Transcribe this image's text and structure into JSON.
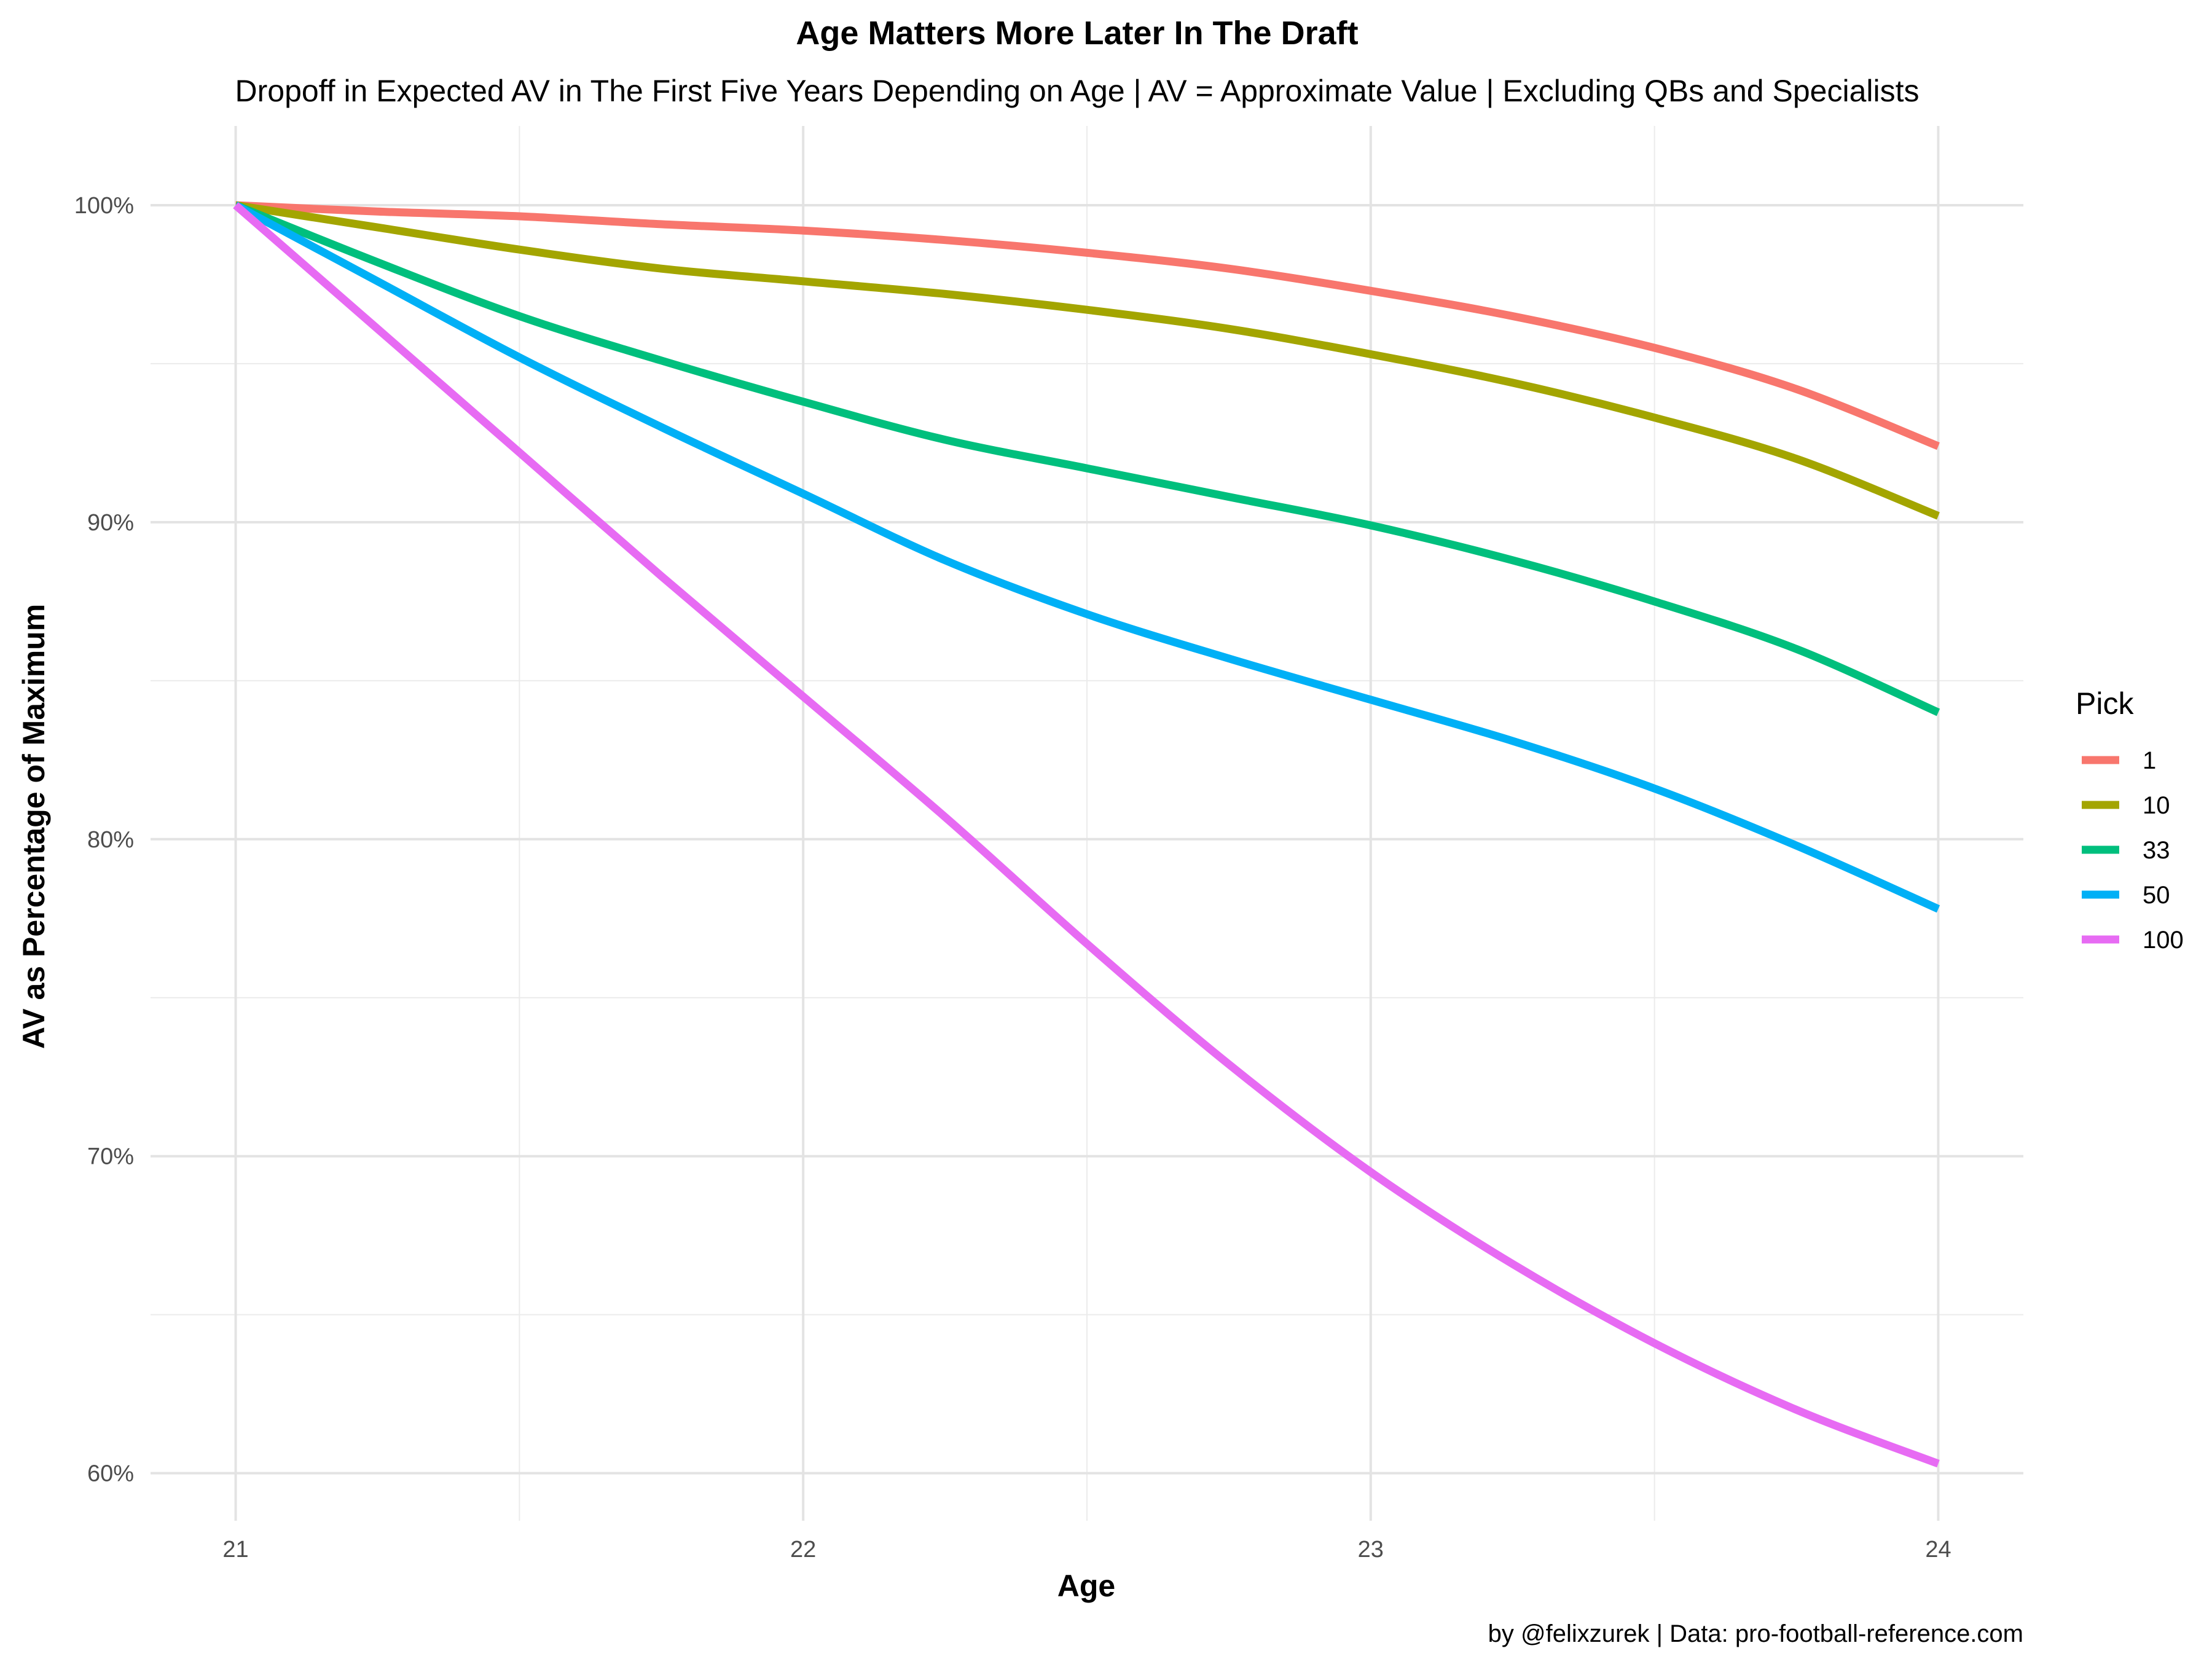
{
  "chart_data": {
    "type": "line",
    "title": "Age Matters More Later In The Draft",
    "subtitle": "Dropoff in Expected AV in The First Five Years Depending on Age | AV = Approximate Value | Excluding QBs and Specialists",
    "xlabel": "Age",
    "ylabel": "AV as Percentage of Maximum",
    "caption": "by @felixzurek | Data: pro-football-reference.com",
    "xlim": [
      20.85,
      24.15
    ],
    "ylim": [
      0.585,
      1.025
    ],
    "x_ticks": [
      21,
      22,
      23,
      24
    ],
    "x_tick_labels": [
      "21",
      "22",
      "23",
      "24"
    ],
    "y_ticks": [
      0.6,
      0.7,
      0.8,
      0.9,
      1.0
    ],
    "y_tick_labels": [
      "60%",
      "70%",
      "80%",
      "90%",
      "100%"
    ],
    "grid": true,
    "legend": {
      "title": "Pick",
      "placement": "right"
    },
    "x": [
      21,
      21.25,
      21.5,
      21.75,
      22,
      22.25,
      22.5,
      22.75,
      23,
      23.25,
      23.5,
      23.75,
      24
    ],
    "series": [
      {
        "name": "1",
        "color": "#F8766D",
        "values": [
          1.0,
          0.998,
          0.9965,
          0.994,
          0.992,
          0.989,
          0.985,
          0.98,
          0.973,
          0.965,
          0.955,
          0.942,
          0.924
        ]
      },
      {
        "name": "10",
        "color": "#A3A500",
        "values": [
          1.0,
          0.993,
          0.986,
          0.98,
          0.976,
          0.972,
          0.967,
          0.961,
          0.953,
          0.944,
          0.933,
          0.92,
          0.902
        ]
      },
      {
        "name": "33",
        "color": "#00BF7D",
        "values": [
          1.0,
          0.982,
          0.965,
          0.951,
          0.938,
          0.926,
          0.917,
          0.908,
          0.899,
          0.888,
          0.875,
          0.86,
          0.84
        ]
      },
      {
        "name": "50",
        "color": "#00B0F6",
        "values": [
          1.0,
          0.976,
          0.952,
          0.93,
          0.909,
          0.888,
          0.871,
          0.857,
          0.844,
          0.831,
          0.816,
          0.798,
          0.778
        ]
      },
      {
        "name": "100",
        "color": "#E76BF3",
        "values": [
          1.0,
          0.961,
          0.922,
          0.883,
          0.845,
          0.807,
          0.767,
          0.729,
          0.695,
          0.666,
          0.641,
          0.62,
          0.603
        ]
      }
    ]
  }
}
